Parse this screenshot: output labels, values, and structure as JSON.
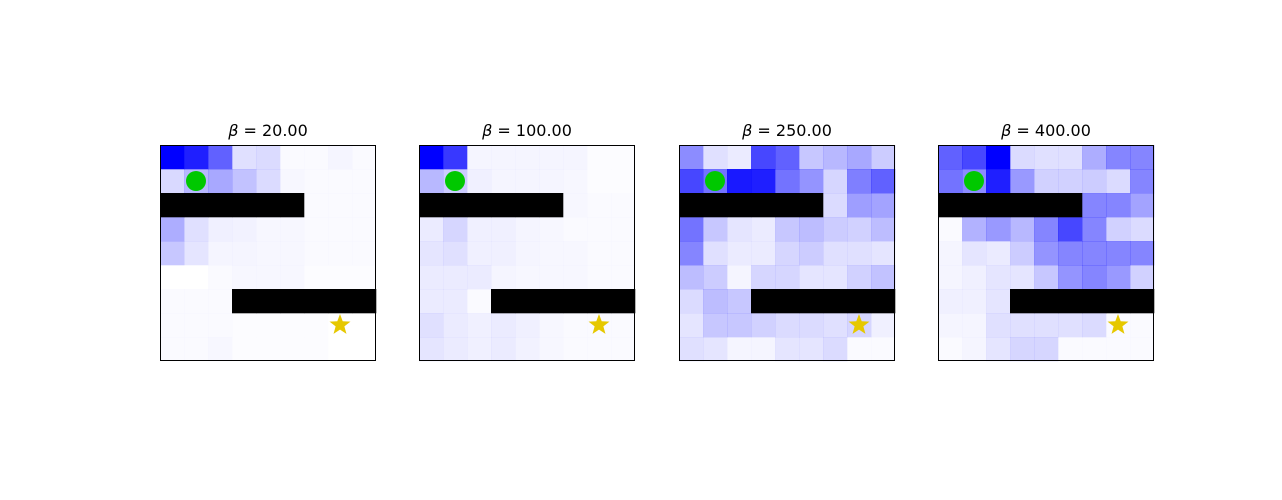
{
  "figure": {
    "background": "#ffffff",
    "cell_base_color": "#0000ff",
    "wall_color": "#000000",
    "agent_color": "#00c800",
    "goal_color": "#e6c800",
    "agent_icon": "circle",
    "goal_icon": "star"
  },
  "chart_data": [
    {
      "type": "heatmap",
      "title_symbol": "β",
      "title_text": " = 20.00",
      "rows": 9,
      "cols": 9,
      "values": [
        [
          1.0,
          0.88,
          0.62,
          0.12,
          0.14,
          0.02,
          0.02,
          0.04,
          0.02
        ],
        [
          0.15,
          0.28,
          0.34,
          0.24,
          0.14,
          0.03,
          0.02,
          0.02,
          0.02
        ],
        [
          0,
          0,
          0,
          0,
          0,
          0,
          0.02,
          0.02,
          0.02
        ],
        [
          0.32,
          0.12,
          0.06,
          0.05,
          0.03,
          0.03,
          0.02,
          0.02,
          0.02
        ],
        [
          0.22,
          0.1,
          0.04,
          0.04,
          0.03,
          0.03,
          0.02,
          0.02,
          0.02
        ],
        [
          0,
          0,
          0.02,
          0.03,
          0.03,
          0.03,
          0.01,
          0.01,
          0.01
        ],
        [
          0.02,
          0.02,
          0.02,
          0,
          0,
          0,
          0,
          0,
          0
        ],
        [
          0.02,
          0.02,
          0.02,
          0.01,
          0.01,
          0.01,
          0.01,
          0,
          0
        ],
        [
          0.02,
          0.02,
          0.03,
          0.01,
          0.01,
          0.01,
          0.01,
          0,
          0
        ]
      ],
      "walls": [
        [
          2,
          0
        ],
        [
          2,
          1
        ],
        [
          2,
          2
        ],
        [
          2,
          3
        ],
        [
          2,
          4
        ],
        [
          2,
          5
        ],
        [
          6,
          3
        ],
        [
          6,
          4
        ],
        [
          6,
          5
        ],
        [
          6,
          6
        ],
        [
          6,
          7
        ],
        [
          6,
          8
        ]
      ],
      "agent": [
        1,
        1
      ],
      "goal": [
        7,
        7
      ]
    },
    {
      "type": "heatmap",
      "title_symbol": "β",
      "title_text": " = 100.00",
      "rows": 9,
      "cols": 9,
      "values": [
        [
          1.0,
          0.78,
          0.04,
          0.04,
          0.04,
          0.04,
          0.04,
          0.01,
          0.01
        ],
        [
          0.28,
          0.2,
          0.06,
          0.04,
          0.04,
          0.04,
          0.03,
          0.01,
          0.01
        ],
        [
          0,
          0,
          0,
          0,
          0,
          0,
          0.03,
          0.02,
          0.02
        ],
        [
          0.08,
          0.16,
          0.06,
          0.06,
          0.04,
          0.03,
          0.02,
          0.02,
          0.02
        ],
        [
          0.1,
          0.12,
          0.06,
          0.06,
          0.04,
          0.03,
          0.03,
          0.02,
          0.02
        ],
        [
          0.08,
          0.08,
          0.08,
          0.04,
          0.03,
          0.03,
          0.03,
          0.02,
          0.02
        ],
        [
          0.08,
          0.08,
          0.02,
          0,
          0,
          0,
          0,
          0,
          0
        ],
        [
          0.12,
          0.08,
          0.06,
          0.08,
          0.06,
          0.03,
          0.02,
          0.02,
          0.02
        ],
        [
          0.1,
          0.08,
          0.06,
          0.08,
          0.05,
          0.03,
          0.02,
          0.02,
          0.02
        ]
      ],
      "walls": [
        [
          2,
          0
        ],
        [
          2,
          1
        ],
        [
          2,
          2
        ],
        [
          2,
          3
        ],
        [
          2,
          4
        ],
        [
          2,
          5
        ],
        [
          6,
          3
        ],
        [
          6,
          4
        ],
        [
          6,
          5
        ],
        [
          6,
          6
        ],
        [
          6,
          7
        ],
        [
          6,
          8
        ]
      ],
      "agent": [
        1,
        1
      ],
      "goal": [
        7,
        7
      ]
    },
    {
      "type": "heatmap",
      "title_symbol": "β",
      "title_text": " = 250.00",
      "rows": 9,
      "cols": 9,
      "values": [
        [
          0.45,
          0.12,
          0.08,
          0.72,
          0.62,
          0.22,
          0.28,
          0.34,
          0.2
        ],
        [
          0.72,
          0.55,
          0.9,
          0.88,
          0.55,
          0.42,
          0.16,
          0.5,
          0.62
        ],
        [
          0,
          0,
          0,
          0,
          0,
          0,
          0.14,
          0.38,
          0.36
        ],
        [
          0.55,
          0.22,
          0.1,
          0.08,
          0.22,
          0.26,
          0.2,
          0.18,
          0.26
        ],
        [
          0.48,
          0.12,
          0.08,
          0.08,
          0.16,
          0.2,
          0.12,
          0.12,
          0.1
        ],
        [
          0.26,
          0.2,
          0.04,
          0.16,
          0.16,
          0.1,
          0.1,
          0.18,
          0.24
        ],
        [
          0.14,
          0.26,
          0.22,
          0,
          0,
          0,
          0,
          0,
          0
        ],
        [
          0.1,
          0.22,
          0.22,
          0.18,
          0.14,
          0.14,
          0.12,
          0.16,
          0.06
        ],
        [
          0.12,
          0.1,
          0.04,
          0.04,
          0.1,
          0.1,
          0.14,
          0.02,
          0.02
        ]
      ],
      "walls": [
        [
          2,
          0
        ],
        [
          2,
          1
        ],
        [
          2,
          2
        ],
        [
          2,
          3
        ],
        [
          2,
          4
        ],
        [
          2,
          5
        ],
        [
          6,
          3
        ],
        [
          6,
          4
        ],
        [
          6,
          5
        ],
        [
          6,
          6
        ],
        [
          6,
          7
        ],
        [
          6,
          8
        ]
      ],
      "agent": [
        1,
        1
      ],
      "goal": [
        7,
        7
      ]
    },
    {
      "type": "heatmap",
      "title_symbol": "β",
      "title_text": " = 400.00",
      "rows": 9,
      "cols": 9,
      "values": [
        [
          0.62,
          0.72,
          1.0,
          0.14,
          0.12,
          0.12,
          0.32,
          0.48,
          0.48
        ],
        [
          0.55,
          0.45,
          0.88,
          0.4,
          0.18,
          0.18,
          0.2,
          0.14,
          0.48
        ],
        [
          0,
          0,
          0,
          0,
          0,
          0,
          0.48,
          0.48,
          0.36
        ],
        [
          0.02,
          0.3,
          0.4,
          0.28,
          0.48,
          0.72,
          0.48,
          0.18,
          0.14
        ],
        [
          0.04,
          0.1,
          0.08,
          0.2,
          0.42,
          0.48,
          0.48,
          0.48,
          0.48
        ],
        [
          0.04,
          0.06,
          0.1,
          0.1,
          0.22,
          0.42,
          0.48,
          0.4,
          0.18
        ],
        [
          0.06,
          0.06,
          0.1,
          0,
          0,
          0,
          0,
          0,
          0
        ],
        [
          0.04,
          0.04,
          0.12,
          0.12,
          0.12,
          0.12,
          0.14,
          0.02,
          0.02
        ],
        [
          0.02,
          0.04,
          0.1,
          0.16,
          0.16,
          0.02,
          0.02,
          0.02,
          0.02
        ]
      ],
      "walls": [
        [
          2,
          0
        ],
        [
          2,
          1
        ],
        [
          2,
          2
        ],
        [
          2,
          3
        ],
        [
          2,
          4
        ],
        [
          2,
          5
        ],
        [
          6,
          3
        ],
        [
          6,
          4
        ],
        [
          6,
          5
        ],
        [
          6,
          6
        ],
        [
          6,
          7
        ],
        [
          6,
          8
        ]
      ],
      "agent": [
        1,
        1
      ],
      "goal": [
        7,
        7
      ]
    }
  ]
}
